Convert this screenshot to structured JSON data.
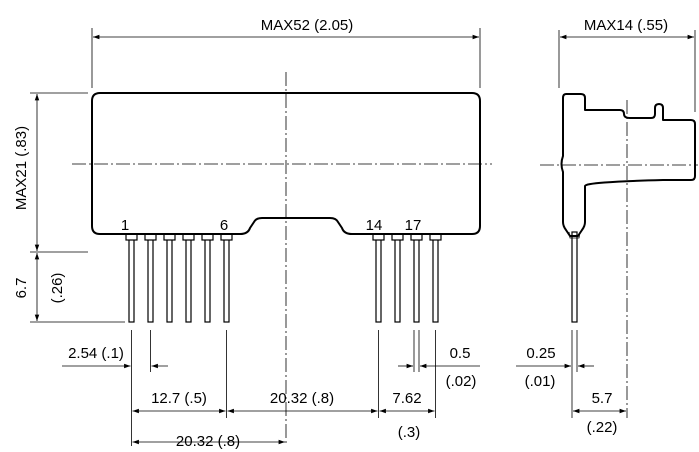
{
  "front_view": {
    "width_label": "MAX52 (2.05)",
    "height_label": "MAX21 (.83)",
    "lead_length_mm": "6.7",
    "lead_length_in": "(.26)",
    "pin_labels": [
      "1",
      "6",
      "14",
      "17"
    ],
    "pitch_label": "2.54 (.1)",
    "span_label_a": "12.7 (.5)",
    "span_label_b": "20.32 (.8)",
    "span_label_c": "20.32 (.8)",
    "span_label_d_mm": "7.62",
    "span_label_d_in": "(.3)",
    "lead_width_mm": "0.5",
    "lead_width_in": "(.02)"
  },
  "side_view": {
    "depth_label": "MAX14 (.55)",
    "lead_thickness_mm": "0.25",
    "lead_thickness_in": "(.01)",
    "lead_offset_mm": "5.7",
    "lead_offset_in": "(.22)"
  }
}
